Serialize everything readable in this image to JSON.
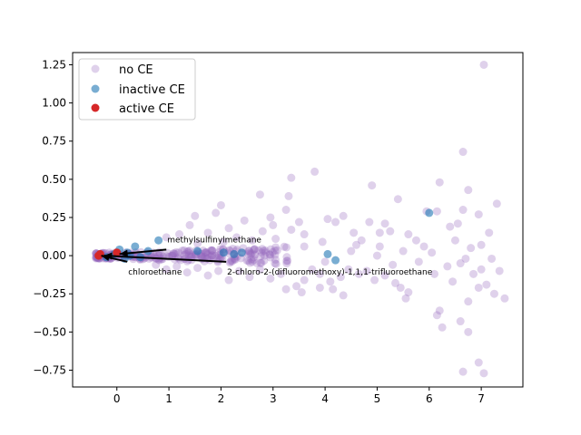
{
  "chart_data": {
    "type": "scatter",
    "title": "",
    "xlabel": "",
    "ylabel": "",
    "xlim": [
      -0.85,
      7.8
    ],
    "ylim": [
      -0.86,
      1.33
    ],
    "xticks": [
      0,
      1,
      2,
      3,
      4,
      5,
      6,
      7
    ],
    "yticks": [
      -0.75,
      -0.5,
      -0.25,
      0.0,
      0.25,
      0.5,
      0.75,
      1.0,
      1.25
    ],
    "ytick_labels": [
      "−0.75",
      "−0.50",
      "−0.25",
      "0.00",
      "0.25",
      "0.50",
      "0.75",
      "1.00",
      "1.25"
    ],
    "grid": false,
    "legend": {
      "position": "upper-left"
    },
    "series": [
      {
        "name": "no CE",
        "color": "#9467bd",
        "opacity": 0.3,
        "cluster": {
          "x_range": [
            -0.4,
            3.3
          ],
          "y_range": [
            -0.06,
            0.06
          ]
        },
        "points": [
          [
            7.05,
            1.25
          ],
          [
            3.8,
            0.55
          ],
          [
            3.35,
            0.51
          ],
          [
            4.9,
            0.46
          ],
          [
            6.2,
            0.48
          ],
          [
            7.3,
            0.34
          ],
          [
            6.65,
            0.68
          ],
          [
            6.75,
            0.43
          ],
          [
            5.4,
            0.37
          ],
          [
            6.65,
            0.3
          ],
          [
            6.95,
            0.27
          ],
          [
            5.95,
            0.29
          ],
          [
            2.75,
            0.4
          ],
          [
            3.3,
            0.39
          ],
          [
            4.35,
            0.26
          ],
          [
            4.85,
            0.22
          ],
          [
            5.15,
            0.21
          ],
          [
            2.0,
            0.33
          ],
          [
            1.9,
            0.28
          ],
          [
            1.5,
            0.26
          ],
          [
            3.25,
            0.3
          ],
          [
            3.5,
            0.22
          ],
          [
            2.95,
            0.25
          ],
          [
            4.2,
            0.22
          ],
          [
            6.15,
            0.29
          ],
          [
            6.4,
            0.19
          ],
          [
            6.55,
            0.21
          ],
          [
            7.15,
            0.15
          ],
          [
            6.5,
            0.1
          ],
          [
            7.0,
            0.07
          ],
          [
            6.8,
            0.05
          ],
          [
            5.6,
            0.14
          ],
          [
            5.75,
            0.1
          ],
          [
            5.9,
            0.06
          ],
          [
            2.45,
            0.23
          ],
          [
            2.15,
            0.18
          ],
          [
            1.4,
            0.2
          ],
          [
            2.8,
            0.16
          ],
          [
            3.6,
            0.14
          ],
          [
            4.55,
            0.15
          ],
          [
            5.25,
            0.16
          ],
          [
            4.7,
            0.1
          ],
          [
            1.2,
            0.14
          ],
          [
            0.95,
            0.12
          ],
          [
            1.75,
            0.15
          ],
          [
            2.3,
            0.12
          ],
          [
            3.05,
            0.11
          ],
          [
            3.95,
            0.09
          ],
          [
            4.6,
            0.07
          ],
          [
            5.05,
            0.06
          ],
          [
            5.5,
            0.03
          ],
          [
            6.05,
            0.02
          ],
          [
            6.7,
            -0.02
          ],
          [
            7.2,
            -0.02
          ],
          [
            6.6,
            -0.05
          ],
          [
            7.0,
            -0.09
          ],
          [
            6.35,
            -0.07
          ],
          [
            6.1,
            -0.12
          ],
          [
            6.45,
            -0.17
          ],
          [
            6.85,
            -0.12
          ],
          [
            7.35,
            -0.1
          ],
          [
            7.1,
            -0.19
          ],
          [
            7.45,
            -0.28
          ],
          [
            7.25,
            -0.25
          ],
          [
            6.95,
            -0.21
          ],
          [
            6.75,
            -0.3
          ],
          [
            6.6,
            -0.43
          ],
          [
            6.75,
            -0.5
          ],
          [
            6.2,
            -0.36
          ],
          [
            6.15,
            -0.39
          ],
          [
            6.25,
            -0.47
          ],
          [
            5.6,
            -0.24
          ],
          [
            5.55,
            -0.28
          ],
          [
            5.45,
            -0.21
          ],
          [
            5.35,
            -0.18
          ],
          [
            5.15,
            -0.13
          ],
          [
            4.95,
            -0.16
          ],
          [
            4.8,
            -0.1
          ],
          [
            4.65,
            -0.12
          ],
          [
            4.45,
            -0.09
          ],
          [
            4.3,
            -0.14
          ],
          [
            4.1,
            -0.17
          ],
          [
            3.9,
            -0.12
          ],
          [
            3.75,
            -0.09
          ],
          [
            3.6,
            -0.16
          ],
          [
            3.45,
            -0.2
          ],
          [
            3.25,
            -0.22
          ],
          [
            3.15,
            -0.12
          ],
          [
            2.95,
            -0.15
          ],
          [
            2.75,
            -0.09
          ],
          [
            2.55,
            -0.14
          ],
          [
            2.35,
            -0.1
          ],
          [
            2.15,
            -0.16
          ],
          [
            1.95,
            -0.1
          ],
          [
            1.75,
            -0.13
          ],
          [
            1.55,
            -0.08
          ],
          [
            1.35,
            -0.11
          ],
          [
            1.15,
            -0.07
          ],
          [
            0.95,
            -0.09
          ],
          [
            0.75,
            -0.06
          ],
          [
            3.55,
            -0.24
          ],
          [
            3.9,
            -0.21
          ],
          [
            4.35,
            -0.26
          ],
          [
            4.15,
            -0.22
          ],
          [
            6.65,
            -0.76
          ],
          [
            6.95,
            -0.7
          ],
          [
            7.05,
            -0.77
          ],
          [
            5.05,
            0.15
          ],
          [
            4.05,
            0.24
          ],
          [
            3.0,
            0.2
          ],
          [
            3.35,
            0.17
          ],
          [
            2.6,
            0.1
          ],
          [
            2.05,
            0.09
          ],
          [
            1.55,
            0.08
          ],
          [
            5.0,
            0.0
          ],
          [
            5.3,
            -0.06
          ],
          [
            5.8,
            -0.04
          ],
          [
            4.5,
            0.03
          ],
          [
            4.0,
            -0.04
          ],
          [
            3.6,
            0.06
          ]
        ]
      },
      {
        "name": "inactive CE",
        "color": "#1f77b4",
        "opacity": 0.6,
        "points": [
          [
            6.0,
            0.28
          ],
          [
            0.8,
            0.1
          ],
          [
            0.35,
            0.06
          ],
          [
            0.05,
            0.04
          ],
          [
            0.2,
            0.02
          ],
          [
            -0.05,
            0.01
          ],
          [
            0.25,
            0.0
          ],
          [
            0.45,
            -0.01
          ],
          [
            -0.2,
            -0.01
          ],
          [
            1.55,
            0.03
          ],
          [
            2.25,
            0.01
          ],
          [
            2.05,
            0.02
          ],
          [
            2.4,
            0.02
          ],
          [
            4.05,
            0.01
          ],
          [
            4.2,
            -0.03
          ],
          [
            0.6,
            0.03
          ],
          [
            0.15,
            -0.02
          ]
        ]
      },
      {
        "name": "active CE",
        "color": "#d62728",
        "opacity": 1.0,
        "points": [
          [
            0.0,
            0.02
          ],
          [
            -0.35,
            0.0
          ],
          [
            -0.32,
            0.01
          ]
        ]
      }
    ],
    "annotations": [
      {
        "text": "methylsulfinylmethane",
        "x": 0.95,
        "y": 0.04,
        "arrow_to": [
          0.05,
          0.01
        ]
      },
      {
        "text": "chloroethane",
        "x": 0.2,
        "y": -0.04,
        "arrow_to": [
          -0.3,
          0.0
        ]
      },
      {
        "text": "2-chloro-2-(difluoromethoxy)-1,1,1-trifluoroethane",
        "x": 2.1,
        "y": -0.04,
        "arrow_to": [
          -0.25,
          0.0
        ]
      }
    ]
  }
}
